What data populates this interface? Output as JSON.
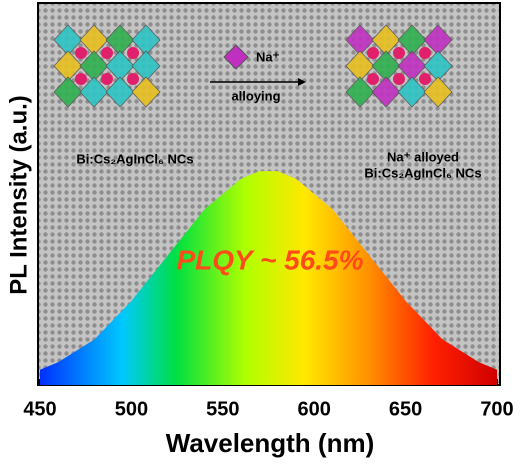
{
  "chart_data": {
    "type": "area",
    "xlabel": "Wavelength (nm)",
    "ylabel": "PL Intensity (a.u.)",
    "x": [
      450,
      460,
      470,
      480,
      490,
      500,
      510,
      520,
      530,
      540,
      550,
      560,
      570,
      580,
      590,
      600,
      610,
      620,
      630,
      640,
      650,
      660,
      670,
      680,
      690,
      700
    ],
    "series": [
      {
        "values": [
          0.04,
          0.06,
          0.09,
          0.12,
          0.17,
          0.22,
          0.28,
          0.34,
          0.4,
          0.46,
          0.5,
          0.54,
          0.56,
          0.56,
          0.54,
          0.5,
          0.46,
          0.4,
          0.34,
          0.28,
          0.22,
          0.17,
          0.12,
          0.09,
          0.06,
          0.04
        ]
      }
    ],
    "xlim": [
      450,
      700
    ],
    "ylim": [
      0,
      1
    ],
    "xticks": [
      450,
      500,
      550,
      600,
      650,
      700
    ],
    "annotations": [
      "PLQY ~ 56.5%",
      "Bi:Cs₂AgInCl₆ NCs",
      "Na⁺",
      "alloying",
      "Na⁺ alloyed",
      "Bi:Cs₂AgInCl₆ NCs"
    ]
  }
}
